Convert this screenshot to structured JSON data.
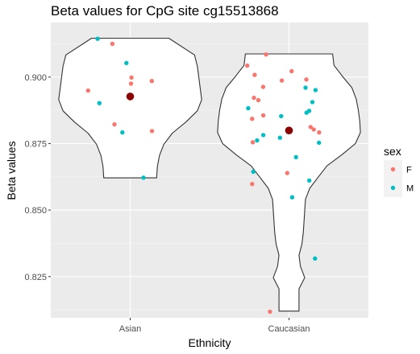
{
  "chart_data": {
    "type": "violin",
    "title": "Beta values for CpG site cg15513868",
    "xlabel": "Ethnicity",
    "ylabel": "Beta values",
    "categories": [
      "Asian",
      "Caucasian"
    ],
    "ylim": [
      0.8095,
      0.9205
    ],
    "yticks": [
      0.825,
      0.85,
      0.875,
      0.9
    ],
    "yticklabels": [
      "0.825",
      "0.850",
      "0.875",
      "0.900"
    ],
    "grid": true,
    "legend": {
      "title": "sex",
      "position": "right",
      "entries": [
        {
          "label": "F",
          "color": "#F8766D"
        },
        {
          "label": "M",
          "color": "#00BFC4"
        }
      ]
    },
    "summary_point_color": "#8B0000",
    "violins": [
      {
        "category": "Asian",
        "y": [
          0.8621,
          0.8663,
          0.8705,
          0.8747,
          0.8789,
          0.8831,
          0.8873,
          0.8915,
          0.8957,
          0.8999,
          0.9041,
          0.9083,
          0.9146
        ],
        "density": [
          0.37,
          0.38,
          0.41,
          0.47,
          0.59,
          0.78,
          0.94,
          1.0,
          0.98,
          0.96,
          0.94,
          0.9,
          0.54
        ],
        "mean": 0.8927
      },
      {
        "category": "Caucasian",
        "y": [
          0.812,
          0.8162,
          0.8204,
          0.8246,
          0.8288,
          0.833,
          0.8372,
          0.8414,
          0.8456,
          0.8498,
          0.854,
          0.8582,
          0.8624,
          0.8666,
          0.8708,
          0.875,
          0.8792,
          0.8834,
          0.8876,
          0.8918,
          0.896,
          0.9002,
          0.9044,
          0.9087
        ],
        "density": [
          0.14,
          0.14,
          0.14,
          0.22,
          0.16,
          0.14,
          0.18,
          0.2,
          0.21,
          0.22,
          0.23,
          0.29,
          0.41,
          0.53,
          0.74,
          0.93,
          1.0,
          0.99,
          0.97,
          0.94,
          0.88,
          0.75,
          0.63,
          0.61
        ],
        "mean": 0.8799
      }
    ],
    "points": [
      {
        "group": "Asian",
        "sex": "M",
        "y": 0.9144,
        "jitter": -0.205
      },
      {
        "group": "Asian",
        "sex": "F",
        "y": 0.9125,
        "jitter": -0.112
      },
      {
        "group": "Asian",
        "sex": "M",
        "y": 0.9053,
        "jitter": -0.024
      },
      {
        "group": "Asian",
        "sex": "F",
        "y": 0.8998,
        "jitter": 0.008
      },
      {
        "group": "Asian",
        "sex": "F",
        "y": 0.8985,
        "jitter": 0.136
      },
      {
        "group": "Asian",
        "sex": "F",
        "y": 0.8975,
        "jitter": 0.005
      },
      {
        "group": "Asian",
        "sex": "F",
        "y": 0.8949,
        "jitter": -0.265
      },
      {
        "group": "Asian",
        "sex": "M",
        "y": 0.8902,
        "jitter": -0.194
      },
      {
        "group": "Asian",
        "sex": "F",
        "y": 0.8822,
        "jitter": -0.099
      },
      {
        "group": "Asian",
        "sex": "F",
        "y": 0.8797,
        "jitter": 0.137
      },
      {
        "group": "Asian",
        "sex": "M",
        "y": 0.8792,
        "jitter": -0.049
      },
      {
        "group": "Asian",
        "sex": "M",
        "y": 0.8622,
        "jitter": 0.084
      },
      {
        "group": "Caucasian",
        "sex": "F",
        "y": 0.9085,
        "jitter": -0.144
      },
      {
        "group": "Caucasian",
        "sex": "F",
        "y": 0.9043,
        "jitter": -0.263
      },
      {
        "group": "Caucasian",
        "sex": "F",
        "y": 0.9022,
        "jitter": 0.017
      },
      {
        "group": "Caucasian",
        "sex": "F",
        "y": 0.9008,
        "jitter": -0.216
      },
      {
        "group": "Caucasian",
        "sex": "F",
        "y": 0.8991,
        "jitter": 0.109
      },
      {
        "group": "Caucasian",
        "sex": "F",
        "y": 0.8987,
        "jitter": -0.045
      },
      {
        "group": "Caucasian",
        "sex": "F",
        "y": 0.8963,
        "jitter": -0.163
      },
      {
        "group": "Caucasian",
        "sex": "M",
        "y": 0.896,
        "jitter": 0.104
      },
      {
        "group": "Caucasian",
        "sex": "M",
        "y": 0.8951,
        "jitter": 0.167
      },
      {
        "group": "Caucasian",
        "sex": "F",
        "y": 0.8922,
        "jitter": -0.221
      },
      {
        "group": "Caucasian",
        "sex": "F",
        "y": 0.8913,
        "jitter": -0.193
      },
      {
        "group": "Caucasian",
        "sex": "M",
        "y": 0.8906,
        "jitter": 0.147
      },
      {
        "group": "Caucasian",
        "sex": "M",
        "y": 0.8883,
        "jitter": -0.257
      },
      {
        "group": "Caucasian",
        "sex": "M",
        "y": 0.8873,
        "jitter": 0.127
      },
      {
        "group": "Caucasian",
        "sex": "M",
        "y": 0.8866,
        "jitter": 0.11
      },
      {
        "group": "Caucasian",
        "sex": "F",
        "y": 0.8856,
        "jitter": -0.162
      },
      {
        "group": "Caucasian",
        "sex": "M",
        "y": 0.8853,
        "jitter": -0.049
      },
      {
        "group": "Caucasian",
        "sex": "F",
        "y": 0.8843,
        "jitter": -0.232
      },
      {
        "group": "Caucasian",
        "sex": "F",
        "y": 0.8812,
        "jitter": 0.136
      },
      {
        "group": "Caucasian",
        "sex": "F",
        "y": 0.8803,
        "jitter": 0.156
      },
      {
        "group": "Caucasian",
        "sex": "F",
        "y": 0.8792,
        "jitter": 0.19
      },
      {
        "group": "Caucasian",
        "sex": "M",
        "y": 0.8782,
        "jitter": -0.162
      },
      {
        "group": "Caucasian",
        "sex": "M",
        "y": 0.8772,
        "jitter": -0.057
      },
      {
        "group": "Caucasian",
        "sex": "M",
        "y": 0.8762,
        "jitter": -0.201
      },
      {
        "group": "Caucasian",
        "sex": "F",
        "y": 0.8755,
        "jitter": -0.228
      },
      {
        "group": "Caucasian",
        "sex": "M",
        "y": 0.8753,
        "jitter": 0.189
      },
      {
        "group": "Caucasian",
        "sex": "M",
        "y": 0.8699,
        "jitter": 0.044
      },
      {
        "group": "Caucasian",
        "sex": "M",
        "y": 0.8644,
        "jitter": -0.225
      },
      {
        "group": "Caucasian",
        "sex": "F",
        "y": 0.8639,
        "jitter": -0.011
      },
      {
        "group": "Caucasian",
        "sex": "M",
        "y": 0.8611,
        "jitter": 0.128
      },
      {
        "group": "Caucasian",
        "sex": "F",
        "y": 0.8598,
        "jitter": -0.232
      },
      {
        "group": "Caucasian",
        "sex": "M",
        "y": 0.8548,
        "jitter": 0.02
      },
      {
        "group": "Caucasian",
        "sex": "M",
        "y": 0.8318,
        "jitter": 0.164
      },
      {
        "group": "Caucasian",
        "sex": "F",
        "y": 0.8118,
        "jitter": -0.12
      }
    ]
  }
}
